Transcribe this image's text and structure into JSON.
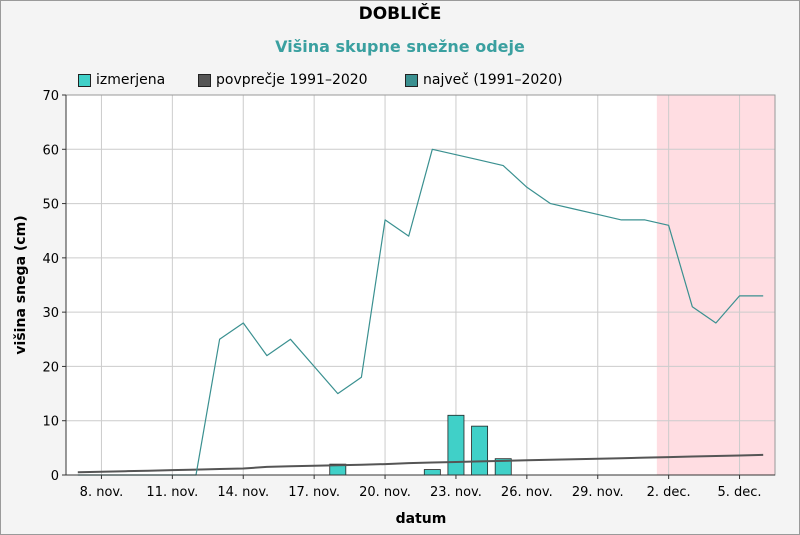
{
  "title": "DOBLIČE",
  "subtitle": "Višina skupne snežne odeje",
  "colors": {
    "measured": "#40d0c8",
    "average": "#555555",
    "max": "#3a9090",
    "forecast_band": "#ffdde2",
    "grid": "#cccccc"
  },
  "legend": [
    {
      "label": "izmerjena",
      "color": "#40d0c8"
    },
    {
      "label": "povprečje 1991–2020",
      "color": "#555555"
    },
    {
      "label": "največ (1991–2020)",
      "color": "#3a9090"
    }
  ],
  "chart_data": {
    "type": "bar",
    "xlabel": "datum",
    "ylabel": "višina snega (cm)",
    "ylim": [
      0,
      70
    ],
    "y_ticks": [
      0,
      10,
      20,
      30,
      40,
      50,
      60,
      70
    ],
    "x_days": [
      7,
      8,
      9,
      10,
      11,
      12,
      13,
      14,
      15,
      16,
      17,
      18,
      19,
      20,
      21,
      22,
      23,
      24,
      25,
      26,
      27,
      28,
      29,
      30,
      31,
      32,
      33,
      34,
      35,
      36
    ],
    "x_tick_days": [
      8,
      11,
      14,
      17,
      20,
      23,
      26,
      29,
      32,
      35
    ],
    "x_tick_labels": [
      "8. nov.",
      "11. nov.",
      "14. nov.",
      "17. nov.",
      "20. nov.",
      "23. nov.",
      "26. nov.",
      "29. nov.",
      "2. dec.",
      "5. dec."
    ],
    "forecast_from_day": 31.5,
    "grid": true,
    "legend_position": "top-left",
    "series": [
      {
        "name": "izmerjena",
        "kind": "bar",
        "values": [
          0,
          0,
          0,
          0,
          0,
          0,
          0,
          0,
          0,
          0,
          0,
          2,
          0,
          0,
          0,
          1,
          11,
          9,
          3,
          0,
          0,
          0,
          0,
          0,
          0,
          0,
          0,
          0,
          0,
          0
        ]
      },
      {
        "name": "povprečje 1991–2020",
        "kind": "line",
        "values": [
          0.5,
          0.6,
          0.7,
          0.8,
          0.9,
          1.0,
          1.1,
          1.2,
          1.5,
          1.6,
          1.7,
          1.8,
          1.9,
          2.0,
          2.2,
          2.3,
          2.4,
          2.5,
          2.6,
          2.7,
          2.8,
          2.9,
          3.0,
          3.1,
          3.2,
          3.3,
          3.4,
          3.5,
          3.6,
          3.7
        ]
      },
      {
        "name": "največ (1991–2020)",
        "kind": "line",
        "values": [
          0,
          0,
          0,
          0,
          0,
          0,
          25,
          28,
          22,
          25,
          20,
          15,
          18,
          47,
          44,
          60,
          59,
          58,
          57,
          53,
          50,
          49,
          48,
          47,
          47,
          46,
          31,
          28,
          33,
          33
        ]
      }
    ]
  }
}
